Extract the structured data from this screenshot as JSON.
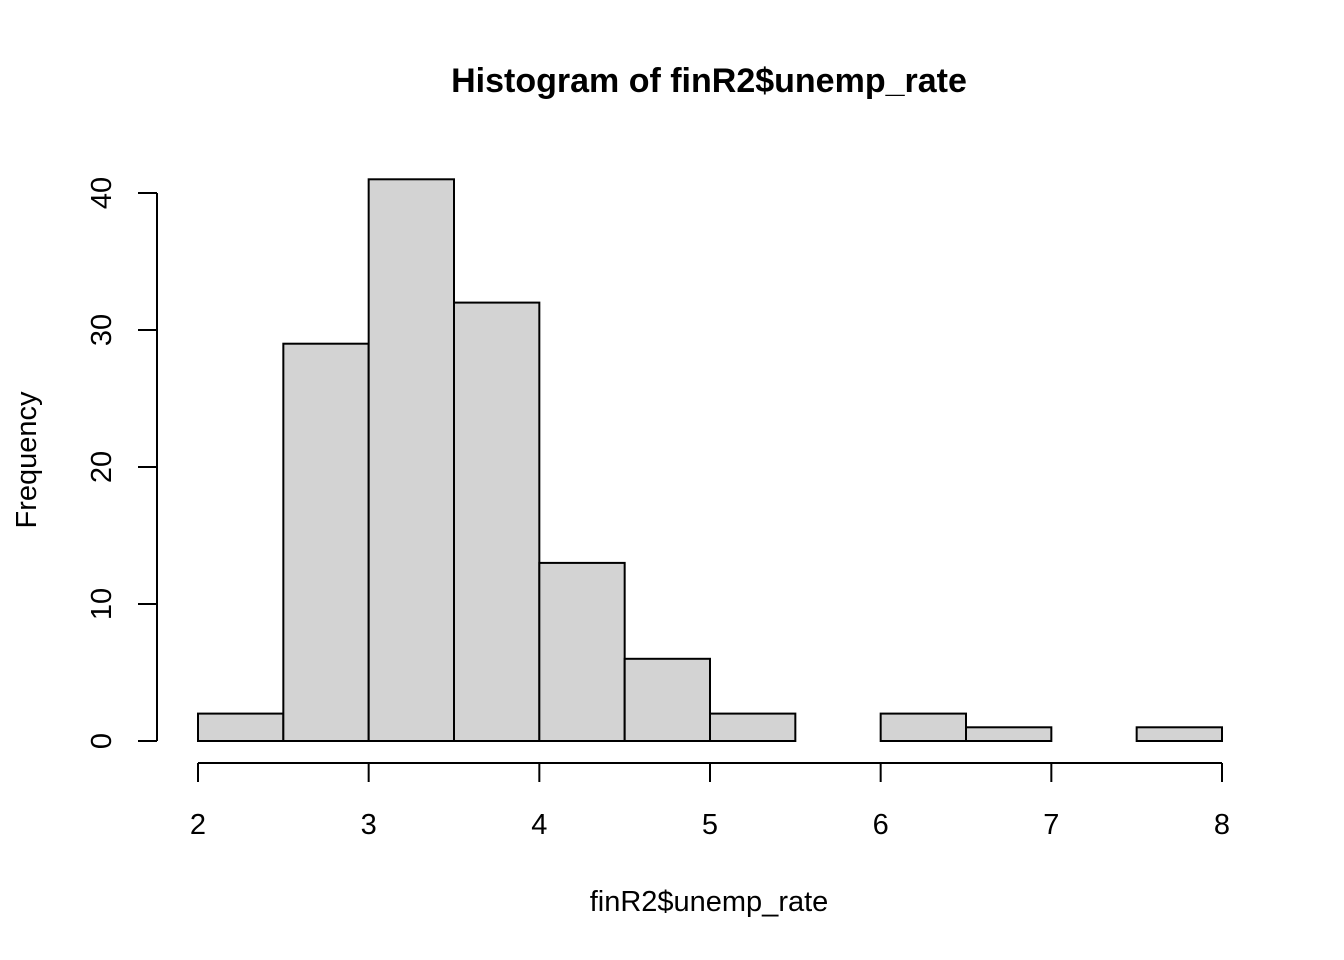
{
  "chart_data": {
    "type": "bar",
    "title": "Histogram of finR2$unemp_rate",
    "xlabel": "finR2$unemp_rate",
    "ylabel": "Frequency",
    "bins": [
      {
        "x0": 2.0,
        "x1": 2.5,
        "count": 2
      },
      {
        "x0": 2.5,
        "x1": 3.0,
        "count": 29
      },
      {
        "x0": 3.0,
        "x1": 3.5,
        "count": 41
      },
      {
        "x0": 3.5,
        "x1": 4.0,
        "count": 32
      },
      {
        "x0": 4.0,
        "x1": 4.5,
        "count": 13
      },
      {
        "x0": 4.5,
        "x1": 5.0,
        "count": 6
      },
      {
        "x0": 5.0,
        "x1": 5.5,
        "count": 2
      },
      {
        "x0": 5.5,
        "x1": 6.0,
        "count": 0
      },
      {
        "x0": 6.0,
        "x1": 6.5,
        "count": 2
      },
      {
        "x0": 6.5,
        "x1": 7.0,
        "count": 1
      },
      {
        "x0": 7.0,
        "x1": 7.5,
        "count": 0
      },
      {
        "x0": 7.5,
        "x1": 8.0,
        "count": 1
      }
    ],
    "xlim": [
      2,
      8
    ],
    "ylim": [
      0,
      40
    ],
    "x_ticks": [
      "2",
      "3",
      "4",
      "5",
      "6",
      "7",
      "8"
    ],
    "y_ticks": [
      "0",
      "10",
      "20",
      "30",
      "40"
    ],
    "bar_color": "#d3d3d3",
    "grid": false,
    "legend": "none"
  }
}
